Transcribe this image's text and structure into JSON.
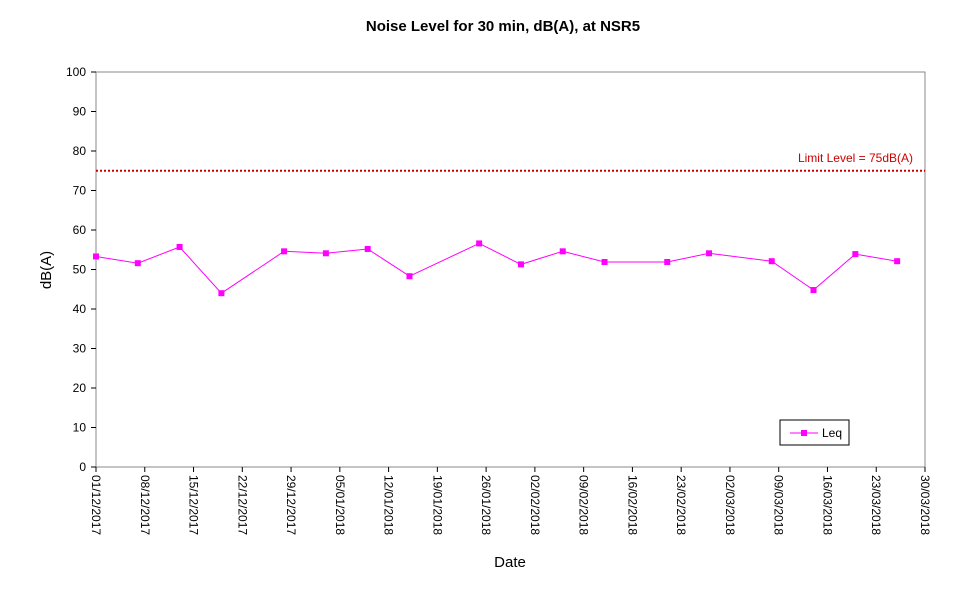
{
  "chart_data": {
    "type": "line",
    "title": "Noise Level for 30 min, dB(A), at NSR5",
    "xlabel": "Date",
    "ylabel": "dB(A)",
    "ylim": [
      0,
      100
    ],
    "yticks": [
      0,
      10,
      20,
      30,
      40,
      50,
      60,
      70,
      80,
      90,
      100
    ],
    "xlim": [
      "2017-12-01",
      "2018-03-30"
    ],
    "xtick_labels": [
      "01/12/2017",
      "08/12/2017",
      "15/12/2017",
      "22/12/2017",
      "29/12/2017",
      "05/01/2018",
      "12/01/2018",
      "19/01/2018",
      "26/01/2018",
      "02/02/2018",
      "09/02/2018",
      "16/02/2018",
      "23/02/2018",
      "02/03/2018",
      "09/03/2018",
      "16/03/2018",
      "23/03/2018",
      "30/03/2018"
    ],
    "xtick_dates": [
      "2017-12-01",
      "2017-12-08",
      "2017-12-15",
      "2017-12-22",
      "2017-12-29",
      "2018-01-05",
      "2018-01-12",
      "2018-01-19",
      "2018-01-26",
      "2018-02-02",
      "2018-02-09",
      "2018-02-16",
      "2018-02-23",
      "2018-03-02",
      "2018-03-09",
      "2018-03-16",
      "2018-03-23",
      "2018-03-30"
    ],
    "grid": false,
    "legend_position": "bottom-right",
    "series": [
      {
        "name": "Leq",
        "color": "#ff00ff",
        "marker": "square",
        "x": [
          "2017-12-01",
          "2017-12-07",
          "2017-12-13",
          "2017-12-19",
          "2017-12-28",
          "2018-01-03",
          "2018-01-09",
          "2018-01-15",
          "2018-01-25",
          "2018-01-31",
          "2018-02-06",
          "2018-02-12",
          "2018-02-21",
          "2018-02-27",
          "2018-03-08",
          "2018-03-14",
          "2018-03-20",
          "2018-03-26"
        ],
        "values": [
          53.3,
          51.6,
          55.7,
          44.0,
          54.6,
          54.1,
          55.2,
          48.3,
          56.6,
          51.3,
          54.6,
          51.9,
          51.9,
          54.1,
          52.1,
          44.8,
          53.9,
          52.1
        ]
      }
    ],
    "reference_lines": [
      {
        "label": "Limit Level = 75dB(A)",
        "value": 75,
        "color": "#cc0000",
        "style": "dotted"
      }
    ]
  }
}
